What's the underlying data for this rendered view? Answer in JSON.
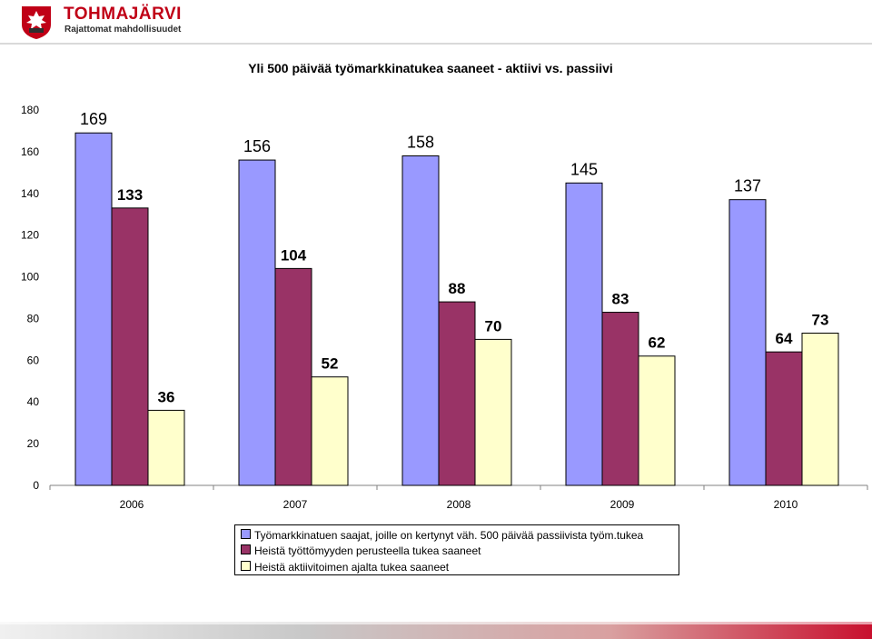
{
  "logo": {
    "name": "TOHMAJÄRVI",
    "slogan": "Rajattomat mahdollisuudet"
  },
  "colors": {
    "series_1": "#9999ff",
    "series_2": "#993366",
    "series_3": "#ffffcc",
    "brand_red": "#c00016"
  },
  "chart_data": {
    "type": "bar",
    "title": "Yli 500 päivää työmarkkinatukea saaneet - aktiivi vs. passiivi",
    "categories": [
      "2006",
      "2007",
      "2008",
      "2009",
      "2010"
    ],
    "ylim": [
      0,
      180
    ],
    "yticks": [
      0,
      20,
      40,
      60,
      80,
      100,
      120,
      140,
      160,
      180
    ],
    "xlabel": "",
    "ylabel": "",
    "grid": false,
    "legend_position": "bottom-center",
    "series": [
      {
        "name": "Työmarkkinatuen saajat, joille on kertynyt väh. 500 päivää passiivista työm.tukea",
        "values": [
          169,
          156,
          158,
          145,
          137
        ],
        "labels": [
          "169",
          "156",
          "158",
          "145",
          "137"
        ],
        "label_bold": false
      },
      {
        "name": "Heistä työttömyyden perusteella tukea saaneet",
        "values": [
          133,
          104,
          88,
          83,
          64
        ],
        "labels": [
          "133",
          "104",
          "88",
          "83",
          "64"
        ],
        "label_bold": true
      },
      {
        "name": "Heistä aktiivitoimen ajalta tukea saaneet",
        "values": [
          36,
          52,
          70,
          62,
          73
        ],
        "labels": [
          "36",
          "52",
          "70",
          "62",
          "73"
        ],
        "label_bold": true
      }
    ]
  }
}
